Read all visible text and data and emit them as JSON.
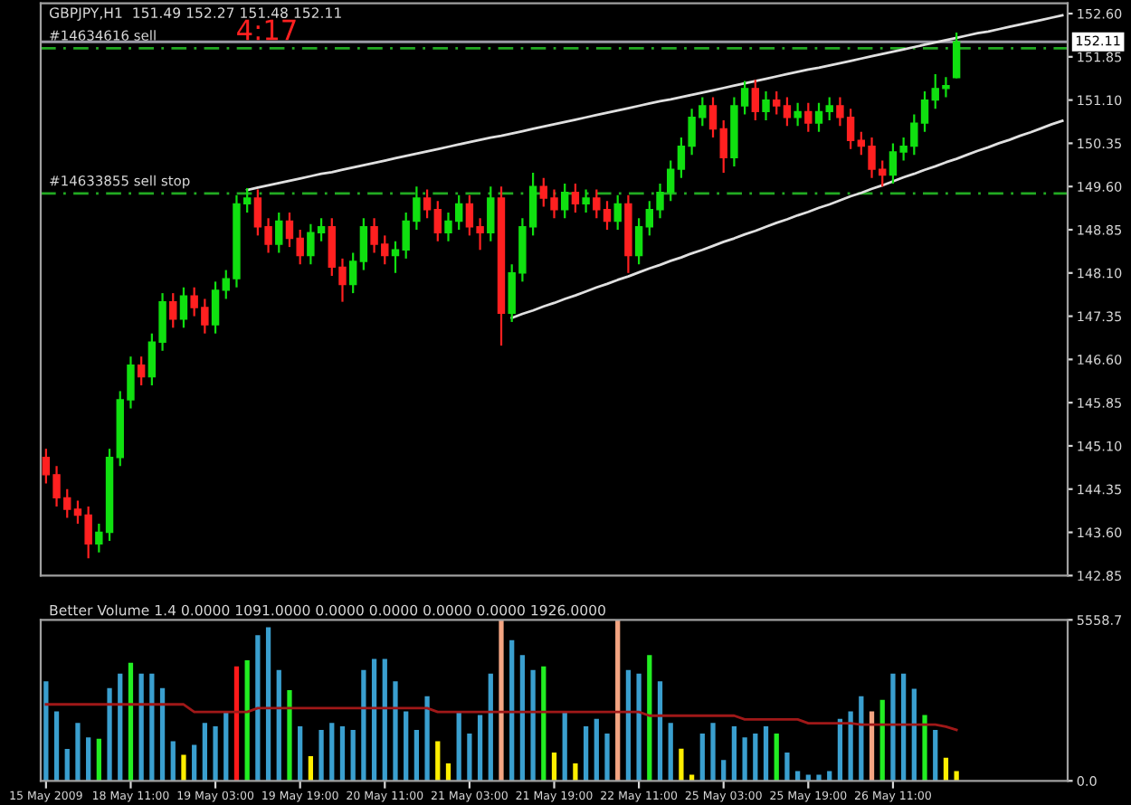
{
  "chart_data": [
    {
      "type": "candlestick",
      "title": "GBPJPY,H1  151.49 152.27 151.48 152.11",
      "categories": [
        null,
        null,
        null,
        null,
        null,
        null,
        null,
        null,
        null,
        null,
        null,
        null,
        null,
        null,
        null,
        null,
        null,
        null,
        null,
        null,
        null,
        null,
        null,
        null,
        null,
        null,
        null,
        null,
        null,
        null,
        null,
        null,
        null,
        null,
        null,
        null,
        null,
        null,
        null,
        null,
        null,
        null,
        null,
        null,
        null,
        null,
        null,
        null,
        null,
        null,
        null,
        null,
        null,
        null,
        null,
        null,
        null,
        null,
        null,
        null,
        null,
        null,
        null,
        null,
        null,
        null,
        null,
        null,
        null,
        null,
        null,
        null,
        null,
        null,
        null,
        null,
        null,
        null,
        null,
        null,
        null,
        null,
        null,
        null,
        null,
        null,
        null,
        null,
        null,
        null,
        null,
        null,
        null,
        null,
        null,
        null,
        null
      ],
      "ohlc": [
        [
          144.9,
          145.05,
          144.45,
          144.6
        ],
        [
          144.6,
          144.75,
          144.05,
          144.2
        ],
        [
          144.2,
          144.35,
          143.85,
          144.0
        ],
        [
          144.0,
          144.15,
          143.75,
          143.9
        ],
        [
          143.9,
          144.05,
          143.15,
          143.4
        ],
        [
          143.4,
          143.75,
          143.25,
          143.6
        ],
        [
          143.6,
          145.05,
          143.45,
          144.9
        ],
        [
          144.9,
          146.05,
          144.75,
          145.9
        ],
        [
          145.9,
          146.65,
          145.75,
          146.5
        ],
        [
          146.5,
          146.65,
          146.15,
          146.3
        ],
        [
          146.3,
          147.05,
          146.15,
          146.9
        ],
        [
          146.9,
          147.75,
          146.75,
          147.6
        ],
        [
          147.6,
          147.75,
          147.15,
          147.3
        ],
        [
          147.3,
          147.85,
          147.15,
          147.7
        ],
        [
          147.7,
          147.85,
          147.35,
          147.5
        ],
        [
          147.5,
          147.65,
          147.05,
          147.2
        ],
        [
          147.2,
          147.95,
          147.05,
          147.8
        ],
        [
          147.8,
          148.15,
          147.65,
          148.0
        ],
        [
          148.0,
          149.45,
          147.85,
          149.3
        ],
        [
          149.3,
          149.57,
          149.15,
          149.4
        ],
        [
          149.4,
          149.55,
          148.75,
          148.9
        ],
        [
          148.9,
          149.05,
          148.45,
          148.6
        ],
        [
          148.6,
          149.15,
          148.45,
          149.0
        ],
        [
          149.0,
          149.15,
          148.55,
          148.7
        ],
        [
          148.7,
          148.85,
          148.25,
          148.4
        ],
        [
          148.4,
          148.95,
          148.25,
          148.8
        ],
        [
          148.8,
          149.05,
          148.65,
          148.9
        ],
        [
          148.9,
          149.05,
          148.05,
          148.2
        ],
        [
          148.2,
          148.35,
          147.6,
          147.9
        ],
        [
          147.9,
          148.45,
          147.75,
          148.3
        ],
        [
          148.3,
          149.05,
          148.15,
          148.9
        ],
        [
          148.9,
          149.05,
          148.45,
          148.6
        ],
        [
          148.6,
          148.75,
          148.25,
          148.4
        ],
        [
          148.4,
          148.65,
          148.1,
          148.5
        ],
        [
          148.5,
          149.15,
          148.35,
          149.0
        ],
        [
          149.0,
          149.6,
          148.85,
          149.4
        ],
        [
          149.4,
          149.55,
          149.05,
          149.2
        ],
        [
          149.2,
          149.35,
          148.65,
          148.8
        ],
        [
          148.8,
          149.15,
          148.65,
          149.0
        ],
        [
          149.0,
          149.45,
          148.85,
          149.3
        ],
        [
          149.3,
          149.45,
          148.75,
          148.9
        ],
        [
          148.9,
          149.05,
          148.5,
          148.8
        ],
        [
          148.8,
          149.6,
          148.65,
          149.4
        ],
        [
          149.4,
          149.6,
          146.84,
          147.4
        ],
        [
          147.4,
          148.25,
          147.25,
          148.1
        ],
        [
          148.1,
          149.05,
          147.95,
          148.9
        ],
        [
          148.9,
          149.84,
          148.75,
          149.6
        ],
        [
          149.6,
          149.75,
          149.25,
          149.4
        ],
        [
          149.4,
          149.55,
          149.05,
          149.2
        ],
        [
          149.2,
          149.65,
          149.05,
          149.5
        ],
        [
          149.5,
          149.65,
          149.15,
          149.3
        ],
        [
          149.3,
          149.55,
          149.15,
          149.4
        ],
        [
          149.4,
          149.55,
          149.05,
          149.2
        ],
        [
          149.2,
          149.35,
          148.85,
          149.0
        ],
        [
          149.0,
          149.45,
          148.85,
          149.3
        ],
        [
          149.3,
          149.45,
          148.1,
          148.4
        ],
        [
          148.4,
          149.05,
          148.25,
          148.9
        ],
        [
          148.9,
          149.35,
          148.75,
          149.2
        ],
        [
          149.2,
          149.65,
          149.05,
          149.5
        ],
        [
          149.5,
          150.05,
          149.35,
          149.9
        ],
        [
          149.9,
          150.45,
          149.75,
          150.3
        ],
        [
          150.3,
          150.95,
          150.15,
          150.8
        ],
        [
          150.8,
          151.15,
          150.65,
          151.0
        ],
        [
          151.0,
          151.15,
          150.45,
          150.6
        ],
        [
          150.6,
          150.75,
          149.84,
          150.1
        ],
        [
          150.1,
          151.15,
          149.95,
          151.0
        ],
        [
          151.0,
          151.43,
          150.85,
          151.3
        ],
        [
          151.3,
          151.45,
          150.75,
          150.9
        ],
        [
          150.9,
          151.25,
          150.75,
          151.1
        ],
        [
          151.1,
          151.25,
          150.85,
          151.0
        ],
        [
          151.0,
          151.15,
          150.65,
          150.8
        ],
        [
          150.8,
          151.05,
          150.65,
          150.9
        ],
        [
          150.9,
          151.05,
          150.55,
          150.7
        ],
        [
          150.7,
          151.05,
          150.55,
          150.9
        ],
        [
          150.9,
          151.15,
          150.75,
          151.0
        ],
        [
          151.0,
          151.15,
          150.65,
          150.8
        ],
        [
          150.8,
          150.95,
          150.25,
          150.4
        ],
        [
          150.4,
          150.55,
          150.15,
          150.3
        ],
        [
          150.3,
          150.45,
          149.75,
          149.9
        ],
        [
          149.9,
          150.05,
          149.6,
          149.8
        ],
        [
          149.8,
          150.35,
          149.65,
          150.2
        ],
        [
          150.2,
          150.45,
          150.05,
          150.3
        ],
        [
          150.3,
          150.85,
          150.15,
          150.7
        ],
        [
          150.7,
          151.25,
          150.55,
          151.1
        ],
        [
          151.1,
          151.55,
          150.95,
          151.3
        ],
        [
          151.3,
          151.5,
          151.15,
          151.35
        ],
        [
          151.49,
          152.27,
          151.48,
          152.11
        ],
        null,
        null,
        null,
        null,
        null,
        null,
        null,
        null,
        null,
        null
      ],
      "series": [
        {
          "type": "line",
          "color": "#e0e0e0",
          "values": [
            null,
            null,
            null,
            null,
            null,
            null,
            null,
            null,
            null,
            null,
            null,
            null,
            null,
            null,
            null,
            null,
            null,
            null,
            null,
            149.54,
            149.58,
            149.62,
            149.66,
            149.7,
            149.74,
            149.78,
            149.82,
            149.85,
            149.89,
            149.93,
            149.97,
            150.01,
            150.05,
            150.09,
            150.13,
            150.17,
            150.21,
            150.25,
            150.29,
            150.33,
            150.37,
            150.41,
            150.45,
            150.48,
            150.52,
            150.56,
            150.6,
            150.64,
            150.68,
            150.72,
            150.76,
            150.8,
            150.84,
            150.88,
            150.92,
            150.96,
            151.0,
            151.04,
            151.08,
            151.11,
            151.15,
            151.19,
            151.23,
            151.27,
            151.31,
            151.35,
            151.39,
            151.43,
            151.47,
            151.51,
            151.55,
            151.59,
            151.63,
            151.66,
            151.7,
            151.74,
            151.78,
            151.82,
            151.86,
            151.9,
            151.94,
            151.98,
            152.02,
            152.06,
            152.1,
            152.14,
            152.18,
            152.22,
            152.26,
            152.29,
            152.33,
            152.37,
            152.41,
            152.45,
            152.49,
            152.53,
            152.57
          ]
        },
        {
          "type": "line",
          "color": "#e0e0e0",
          "values": [
            null,
            null,
            null,
            null,
            null,
            null,
            null,
            null,
            null,
            null,
            null,
            null,
            null,
            null,
            null,
            null,
            null,
            null,
            null,
            null,
            null,
            null,
            null,
            null,
            null,
            null,
            null,
            null,
            null,
            null,
            null,
            null,
            null,
            null,
            null,
            null,
            null,
            null,
            null,
            null,
            null,
            null,
            null,
            null,
            147.32,
            147.39,
            147.45,
            147.52,
            147.58,
            147.65,
            147.71,
            147.78,
            147.85,
            147.91,
            147.98,
            148.04,
            148.11,
            148.18,
            148.24,
            148.31,
            148.37,
            148.44,
            148.5,
            148.57,
            148.64,
            148.7,
            148.77,
            148.83,
            148.9,
            148.97,
            149.03,
            149.1,
            149.16,
            149.23,
            149.29,
            149.36,
            149.43,
            149.49,
            149.56,
            149.62,
            149.69,
            149.76,
            149.82,
            149.89,
            149.95,
            150.02,
            150.08,
            150.15,
            150.22,
            150.28,
            150.35,
            150.41,
            150.48,
            150.54,
            150.61,
            150.68,
            150.74
          ]
        }
      ],
      "ylim": [
        142.85,
        152.78
      ],
      "yticks": [
        {
          "value": 152.6,
          "label": "152.60"
        },
        {
          "value": 151.85,
          "label": "151.85"
        },
        {
          "value": 151.1,
          "label": "151.10"
        },
        {
          "value": 150.35,
          "label": "150.35"
        },
        {
          "value": 149.6,
          "label": "149.60"
        },
        {
          "value": 148.85,
          "label": "148.85"
        },
        {
          "value": 148.1,
          "label": "148.10"
        },
        {
          "value": 147.35,
          "label": "147.35"
        },
        {
          "value": 146.6,
          "label": "146.60"
        },
        {
          "value": 145.85,
          "label": "145.85"
        },
        {
          "value": 145.1,
          "label": "145.10"
        },
        {
          "value": 144.35,
          "label": "144.35"
        },
        {
          "value": 143.6,
          "label": "143.60"
        },
        {
          "value": 142.85,
          "label": "142.85"
        }
      ],
      "ref_lines": [
        {
          "axis": "y",
          "value": 152.0,
          "label": "#14634616 sell",
          "color": "#22aa22",
          "line_style": "dashed"
        },
        {
          "axis": "y",
          "value": 149.48,
          "label": "#14633855 sell stop",
          "color": "#22aa22",
          "line_style": "dashed"
        },
        {
          "axis": "y",
          "value": 152.11,
          "label": "152.11",
          "color": "#9a9aa6",
          "line_style": "solid"
        }
      ],
      "annotations": [
        {
          "text": "4:17",
          "y": 152.0
        }
      ],
      "tick_labels": "y"
    },
    {
      "type": "bar",
      "title": "Better Volume 1.4 0.0000 1091.0000 0.0000 0.0000 0.0000 0.0000 1926.0000",
      "categories": [
        "15 May 2009",
        null,
        null,
        null,
        null,
        null,
        null,
        null,
        "18 May 11:00",
        null,
        null,
        null,
        null,
        null,
        null,
        null,
        "19 May 03:00",
        null,
        null,
        null,
        null,
        null,
        null,
        null,
        "19 May 19:00",
        null,
        null,
        null,
        null,
        null,
        null,
        null,
        "20 May 11:00",
        null,
        null,
        null,
        null,
        null,
        null,
        null,
        "21 May 03:00",
        null,
        null,
        null,
        null,
        null,
        null,
        null,
        "21 May 19:00",
        null,
        null,
        null,
        null,
        null,
        null,
        null,
        "22 May 11:00",
        null,
        null,
        null,
        null,
        null,
        null,
        null,
        "25 May 03:00",
        null,
        null,
        null,
        null,
        null,
        null,
        null,
        "25 May 19:00",
        null,
        null,
        null,
        null,
        null,
        null,
        null,
        "26 May 11:00",
        null,
        null,
        null,
        null,
        null,
        null,
        null,
        null,
        null,
        null,
        null,
        null,
        null,
        null,
        null,
        null
      ],
      "series": [
        {
          "type": "bar",
          "values": [
            3440,
            2400,
            1100,
            2000,
            1500,
            1450,
            3200,
            3700,
            4080,
            3700,
            3700,
            3200,
            1370,
            900,
            1240,
            2000,
            1880,
            2400,
            3950,
            4160,
            5030,
            5300,
            3830,
            3130,
            1880,
            850,
            1760,
            2000,
            1880,
            1760,
            3830,
            4210,
            4210,
            3440,
            2400,
            1760,
            2920,
            1370,
            600,
            2400,
            1630,
            2270,
            3700,
            5550,
            4860,
            4340,
            3830,
            3950,
            980,
            2400,
            600,
            1880,
            2140,
            1630,
            5550,
            3830,
            3700,
            4340,
            3440,
            2000,
            1110,
            210,
            1630,
            2000,
            720,
            1880,
            1500,
            1630,
            1880,
            1630,
            980,
            340,
            210,
            210,
            340,
            2140,
            2400,
            2920,
            2400,
            2800,
            3700,
            3700,
            3180,
            2270,
            1760,
            800,
            340,
            null,
            null,
            null,
            null,
            null,
            null,
            null,
            null,
            null,
            null
          ],
          "colors": [
            "#3a9fcf",
            "#3a9fcf",
            "#3a9fcf",
            "#3a9fcf",
            "#3a9fcf",
            "#22ee22",
            "#3a9fcf",
            "#3a9fcf",
            "#22ee22",
            "#3a9fcf",
            "#3a9fcf",
            "#3a9fcf",
            "#3a9fcf",
            "#ffee00",
            "#3a9fcf",
            "#3a9fcf",
            "#3a9fcf",
            "#3a9fcf",
            "#ff1a1a",
            "#22ee22",
            "#3a9fcf",
            "#3a9fcf",
            "#3a9fcf",
            "#22ee22",
            "#3a9fcf",
            "#ffee00",
            "#3a9fcf",
            "#3a9fcf",
            "#3a9fcf",
            "#3a9fcf",
            "#3a9fcf",
            "#3a9fcf",
            "#3a9fcf",
            "#3a9fcf",
            "#3a9fcf",
            "#3a9fcf",
            "#3a9fcf",
            "#ffee00",
            "#ffee00",
            "#3a9fcf",
            "#3a9fcf",
            "#3a9fcf",
            "#3a9fcf",
            "#f4a582",
            "#3a9fcf",
            "#3a9fcf",
            "#3a9fcf",
            "#22ee22",
            "#ffee00",
            "#3a9fcf",
            "#ffee00",
            "#3a9fcf",
            "#3a9fcf",
            "#3a9fcf",
            "#f4a582",
            "#3a9fcf",
            "#3a9fcf",
            "#22ee22",
            "#3a9fcf",
            "#3a9fcf",
            "#ffee00",
            "#ffee00",
            "#3a9fcf",
            "#3a9fcf",
            "#3a9fcf",
            "#3a9fcf",
            "#3a9fcf",
            "#3a9fcf",
            "#3a9fcf",
            "#22ee22",
            "#3a9fcf",
            "#3a9fcf",
            "#3a9fcf",
            "#3a9fcf",
            "#3a9fcf",
            "#3a9fcf",
            "#3a9fcf",
            "#3a9fcf",
            "#f4a582",
            "#22ee22",
            "#3a9fcf",
            "#3a9fcf",
            "#3a9fcf",
            "#22ee22",
            "#3a9fcf",
            "#ffee00",
            "#ffee00",
            null,
            null,
            null,
            null,
            null,
            null,
            null,
            null,
            null,
            null
          ]
        },
        {
          "type": "line",
          "color": "#a01818",
          "values": [
            2640,
            2640,
            2640,
            2640,
            2640,
            2640,
            2640,
            2640,
            2640,
            2640,
            2640,
            2640,
            2640,
            2640,
            2380,
            2380,
            2380,
            2380,
            2380,
            2380,
            2510,
            2510,
            2510,
            2510,
            2510,
            2510,
            2510,
            2510,
            2510,
            2510,
            2510,
            2510,
            2510,
            2510,
            2510,
            2510,
            2510,
            2380,
            2380,
            2380,
            2380,
            2380,
            2380,
            2380,
            2380,
            2380,
            2380,
            2380,
            2380,
            2380,
            2380,
            2380,
            2380,
            2380,
            2380,
            2380,
            2380,
            2250,
            2250,
            2250,
            2250,
            2250,
            2250,
            2250,
            2250,
            2250,
            2120,
            2120,
            2120,
            2120,
            2120,
            2120,
            1990,
            1990,
            1990,
            1990,
            1990,
            1940,
            1940,
            1940,
            1940,
            1940,
            1940,
            1940,
            1940,
            1870,
            1760,
            null,
            null,
            null,
            null,
            null,
            null,
            null,
            null,
            null,
            null
          ]
        }
      ],
      "ylim": [
        0,
        5558.7
      ],
      "yticks": [
        5558.7,
        {
          "value": 0,
          "label": "0.0"
        }
      ]
    }
  ]
}
